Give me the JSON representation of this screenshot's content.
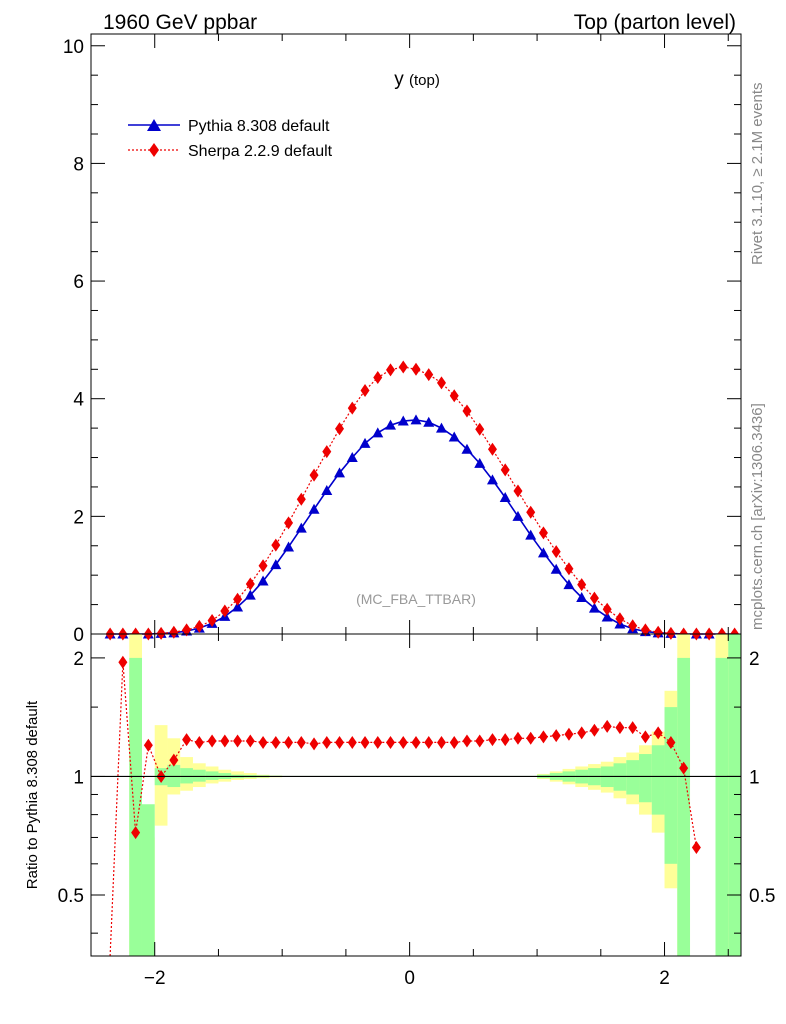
{
  "header": {
    "left": "1960 GeV ppbar",
    "right": "Top (parton level)"
  },
  "side_labels": {
    "rivet": "Rivet 3.1.10, ≥ 2.1M events",
    "mcplots": "mcplots.cern.ch [arXiv:1306.3436]"
  },
  "chart_data": [
    {
      "type": "line",
      "title": "y (top)",
      "watermark": "(MC_FBA_TTBAR)",
      "xlim": [
        -2.5,
        2.6
      ],
      "ylim": [
        0,
        10.2
      ],
      "yticks": [
        0,
        2,
        4,
        6,
        8,
        10
      ],
      "legend": "top-left",
      "x": [
        -2.35,
        -2.25,
        -2.15,
        -2.05,
        -1.95,
        -1.85,
        -1.75,
        -1.65,
        -1.55,
        -1.45,
        -1.35,
        -1.25,
        -1.15,
        -1.05,
        -0.95,
        -0.85,
        -0.75,
        -0.65,
        -0.55,
        -0.45,
        -0.35,
        -0.25,
        -0.15,
        -0.05,
        0.05,
        0.15,
        0.25,
        0.35,
        0.45,
        0.55,
        0.65,
        0.75,
        0.85,
        0.95,
        1.05,
        1.15,
        1.25,
        1.35,
        1.45,
        1.55,
        1.65,
        1.75,
        1.85,
        1.95,
        2.05,
        2.15,
        2.25,
        2.35,
        2.45,
        2.55
      ],
      "series": [
        {
          "name": "Pythia 8.308 default",
          "color": "#0000cc",
          "marker": "triangle",
          "values": [
            0,
            0,
            0,
            0,
            0.01,
            0.02,
            0.05,
            0.1,
            0.18,
            0.3,
            0.46,
            0.66,
            0.9,
            1.18,
            1.48,
            1.8,
            2.12,
            2.44,
            2.74,
            3.0,
            3.24,
            3.42,
            3.55,
            3.62,
            3.64,
            3.6,
            3.5,
            3.35,
            3.14,
            2.9,
            2.62,
            2.32,
            2.0,
            1.68,
            1.38,
            1.1,
            0.84,
            0.62,
            0.44,
            0.29,
            0.17,
            0.09,
            0.04,
            0.02,
            0.01,
            0,
            0,
            0,
            0,
            0
          ]
        },
        {
          "name": "Sherpa 2.2.9 default",
          "color": "#ee0000",
          "marker": "diamond",
          "values": [
            0,
            0,
            0,
            0,
            0.01,
            0.03,
            0.07,
            0.13,
            0.23,
            0.39,
            0.59,
            0.85,
            1.16,
            1.51,
            1.89,
            2.29,
            2.7,
            3.1,
            3.49,
            3.84,
            4.14,
            4.36,
            4.49,
            4.54,
            4.5,
            4.41,
            4.27,
            4.05,
            3.79,
            3.48,
            3.14,
            2.79,
            2.43,
            2.07,
            1.72,
            1.4,
            1.11,
            0.84,
            0.61,
            0.42,
            0.26,
            0.14,
            0.07,
            0.03,
            0.01,
            0,
            0,
            0,
            0,
            0
          ]
        }
      ]
    },
    {
      "type": "line",
      "ylabel": "Ratio to Pythia 8.308 default",
      "xlim": [
        -2.5,
        2.6
      ],
      "ylim": [
        0.35,
        2.3
      ],
      "yscale": "log",
      "xticks": [
        -2,
        0,
        2
      ],
      "yticks": [
        0.5,
        1,
        2
      ],
      "band_x": [
        -2.3,
        -2.2,
        -2.1,
        -2.0,
        -1.9,
        -1.8,
        -1.7,
        -1.6,
        -1.5,
        -1.4,
        -1.3,
        -1.2,
        -1.1,
        -1.0,
        1.0,
        1.1,
        1.2,
        1.3,
        1.4,
        1.5,
        1.6,
        1.7,
        1.8,
        1.9,
        2.0,
        2.1,
        2.2,
        2.3,
        2.4,
        2.5,
        2.6
      ],
      "band_inner": [
        1.0,
        2.0,
        0.35,
        1.05,
        1.07,
        1.05,
        1.04,
        1.03,
        1.02,
        1.01,
        1.008,
        1.006,
        1.004,
        1.0
      ],
      "band_inner_lo": [
        1.0,
        0.35,
        0.85,
        0.95,
        0.94,
        0.96,
        0.97,
        0.98,
        0.985,
        0.99,
        0.993,
        0.995,
        0.997,
        1.0
      ],
      "band_outer": [
        1.0,
        2.3,
        0.35,
        1.35,
        1.25,
        1.12,
        1.08,
        1.06,
        1.04,
        1.03,
        1.02,
        1.01,
        1.005,
        1.0
      ],
      "band_outer_lo": [
        1.0,
        0.35,
        0.7,
        0.75,
        0.9,
        0.92,
        0.94,
        0.96,
        0.97,
        0.98,
        0.985,
        0.99,
        0.995,
        1.0
      ],
      "band_right": [
        1.01,
        1.02,
        1.03,
        1.04,
        1.05,
        1.06,
        1.08,
        1.1,
        1.14,
        1.2,
        1.5,
        2.0,
        0.35,
        1.0,
        2.0,
        2.3
      ],
      "band_right_lo": [
        0.99,
        0.98,
        0.97,
        0.96,
        0.95,
        0.94,
        0.92,
        0.9,
        0.86,
        0.8,
        0.6,
        0.35,
        0.35,
        1.0,
        0.35,
        0.35
      ],
      "band_right_outer": [
        1.015,
        1.03,
        1.045,
        1.06,
        1.075,
        1.09,
        1.12,
        1.15,
        1.2,
        1.3,
        1.65,
        2.3,
        0.35,
        1.0,
        2.3,
        2.3
      ],
      "band_right_outer_lo": [
        0.985,
        0.97,
        0.955,
        0.94,
        0.925,
        0.91,
        0.88,
        0.85,
        0.8,
        0.72,
        0.52,
        0.35,
        0.35,
        1.0,
        0.35,
        0.35
      ],
      "series": [
        {
          "name": "Sherpa 2.2.9 default",
          "color": "#ee0000",
          "x": [
            -2.35,
            -2.25,
            -2.15,
            -2.05,
            -1.95,
            -1.85,
            -1.75,
            -1.65,
            -1.55,
            -1.45,
            -1.35,
            -1.25,
            -1.15,
            -1.05,
            -0.95,
            -0.85,
            -0.75,
            -0.65,
            -0.55,
            -0.45,
            -0.35,
            -0.25,
            -0.15,
            -0.05,
            0.05,
            0.15,
            0.25,
            0.35,
            0.45,
            0.55,
            0.65,
            0.75,
            0.85,
            0.95,
            1.05,
            1.15,
            1.25,
            1.35,
            1.45,
            1.55,
            1.65,
            1.75,
            1.85,
            1.95,
            2.05,
            2.15,
            2.25
          ],
          "values": [
            0.35,
            1.95,
            0.72,
            1.2,
            1.0,
            1.1,
            1.24,
            1.22,
            1.23,
            1.23,
            1.23,
            1.23,
            1.22,
            1.22,
            1.22,
            1.22,
            1.21,
            1.22,
            1.22,
            1.22,
            1.22,
            1.22,
            1.22,
            1.22,
            1.22,
            1.22,
            1.22,
            1.22,
            1.23,
            1.23,
            1.24,
            1.24,
            1.25,
            1.25,
            1.26,
            1.27,
            1.28,
            1.29,
            1.31,
            1.34,
            1.33,
            1.33,
            1.26,
            1.29,
            1.22,
            1.05,
            0.66
          ]
        }
      ]
    }
  ]
}
